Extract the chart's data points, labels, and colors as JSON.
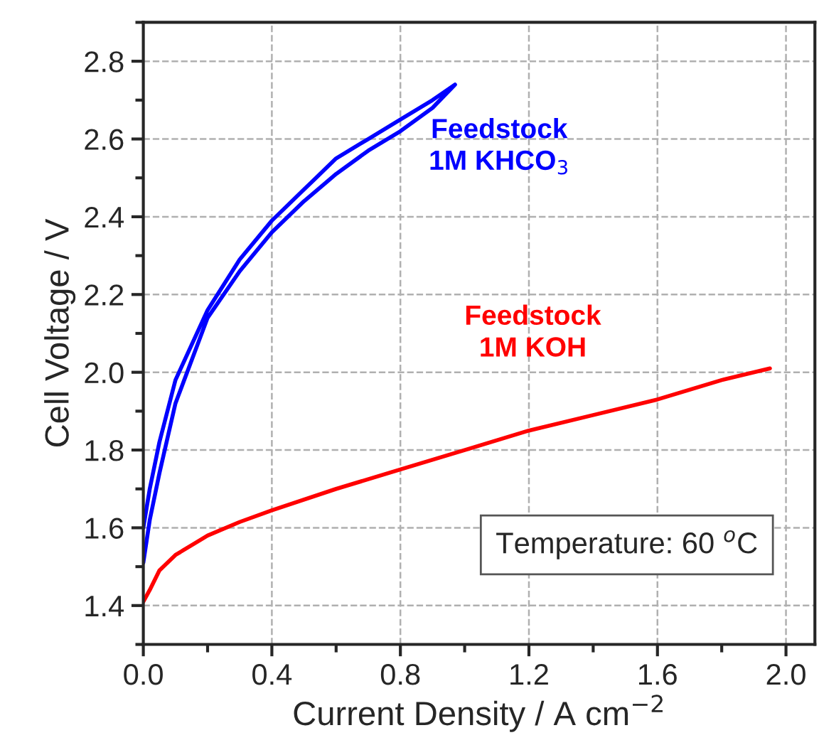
{
  "chart_data": {
    "type": "line",
    "xlabel": "Current Density / A cm$^{−2}$",
    "ylabel": "Cell Voltage / V",
    "annotations": [
      "Temperature: 60 $^{o}$C"
    ],
    "series": [
      {
        "name": "Feedstock\n1M KHCO$_{3}$",
        "color": "#0000ff",
        "x": [
          0.0,
          0.02,
          0.05,
          0.1,
          0.2,
          0.3,
          0.4,
          0.5,
          0.6,
          0.7,
          0.8,
          0.9,
          0.97,
          0.9,
          0.8,
          0.7,
          0.6,
          0.5,
          0.4,
          0.3,
          0.2,
          0.1,
          0.05,
          0.02,
          0.0
        ],
        "values": [
          1.51,
          1.62,
          1.74,
          1.92,
          2.14,
          2.26,
          2.36,
          2.44,
          2.51,
          2.57,
          2.62,
          2.68,
          2.74,
          2.7,
          2.65,
          2.6,
          2.55,
          2.47,
          2.39,
          2.29,
          2.16,
          1.98,
          1.82,
          1.7,
          1.6
        ]
      },
      {
        "name": "Feedstock\n1M KOH",
        "color": "#ff0000",
        "x": [
          0.0,
          0.02,
          0.05,
          0.1,
          0.2,
          0.3,
          0.4,
          0.6,
          0.8,
          1.0,
          1.2,
          1.4,
          1.6,
          1.8,
          1.95
        ],
        "values": [
          1.41,
          1.44,
          1.49,
          1.53,
          1.58,
          1.615,
          1.645,
          1.7,
          1.75,
          1.8,
          1.85,
          1.89,
          1.93,
          1.98,
          2.01
        ]
      }
    ],
    "xlim": [
      0,
      2.09
    ],
    "ylim": [
      1.3,
      2.9
    ],
    "xticks": [
      {
        "value": 0,
        "label": "0.0"
      },
      0.4,
      0.8,
      1.2,
      1.6,
      {
        "value": 2,
        "label": "2.0"
      }
    ],
    "yticks": [
      1.4,
      1.6,
      1.8,
      {
        "value": 2,
        "label": "2.0"
      },
      2.2,
      2.4,
      2.6,
      2.8
    ],
    "grid": true,
    "legend": false,
    "marker": "none",
    "line_style": "solid"
  }
}
